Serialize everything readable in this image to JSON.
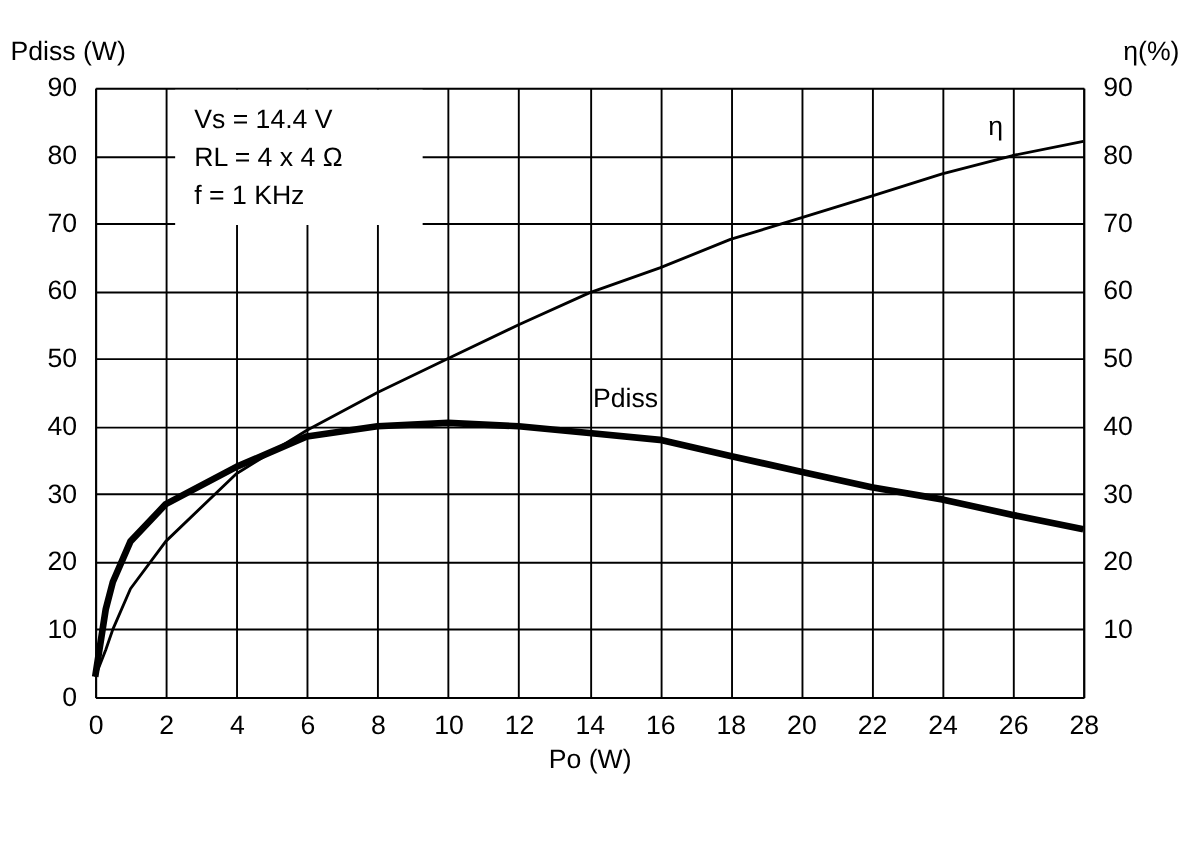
{
  "chart_data": {
    "type": "line",
    "xlabel": "Po (W)",
    "ylabel": "Pdiss (W)",
    "y2label": "η(%)",
    "xlim": [
      0,
      28
    ],
    "xticks": [
      0,
      2,
      4,
      6,
      8,
      10,
      12,
      14,
      16,
      18,
      20,
      22,
      24,
      26,
      28
    ],
    "ylim": [
      0,
      90
    ],
    "yticks": [
      0,
      10,
      20,
      30,
      40,
      50,
      60,
      70,
      80,
      90
    ],
    "y2lim": [
      0,
      90
    ],
    "y2ticks": [
      10,
      20,
      30,
      40,
      50,
      60,
      70,
      80,
      90
    ],
    "grid": true,
    "legend": false,
    "marker": "none",
    "line_style": "solid",
    "annotations": [
      "Vs = 14.4 V",
      "RL = 4 x 4 Ω",
      "f = 1 KHz"
    ],
    "series": [
      {
        "name": "Pdiss",
        "color": "#000000",
        "x": [
          0,
          0.3,
          0.5,
          1,
          2,
          4,
          6,
          8,
          10,
          12,
          14,
          16,
          18,
          20,
          22,
          24,
          26,
          28
        ],
        "values": [
          3,
          13,
          17,
          23,
          28.5,
          34,
          38.5,
          40,
          40.5,
          40,
          39,
          38,
          35.6,
          33.3,
          31,
          29.2,
          26.9,
          24.8
        ]
      },
      {
        "name": "η",
        "color": "#000000",
        "axis": "y2",
        "x": [
          0,
          0.3,
          0.5,
          1,
          2,
          4,
          6,
          8,
          10,
          12,
          14,
          16,
          18,
          20,
          22,
          24,
          26,
          28
        ],
        "values": [
          3,
          7,
          10,
          16,
          23,
          33,
          39.4,
          45,
          50,
          55,
          59.7,
          63.4,
          67.6,
          70.8,
          74,
          77.3,
          80,
          82.1
        ]
      }
    ]
  }
}
